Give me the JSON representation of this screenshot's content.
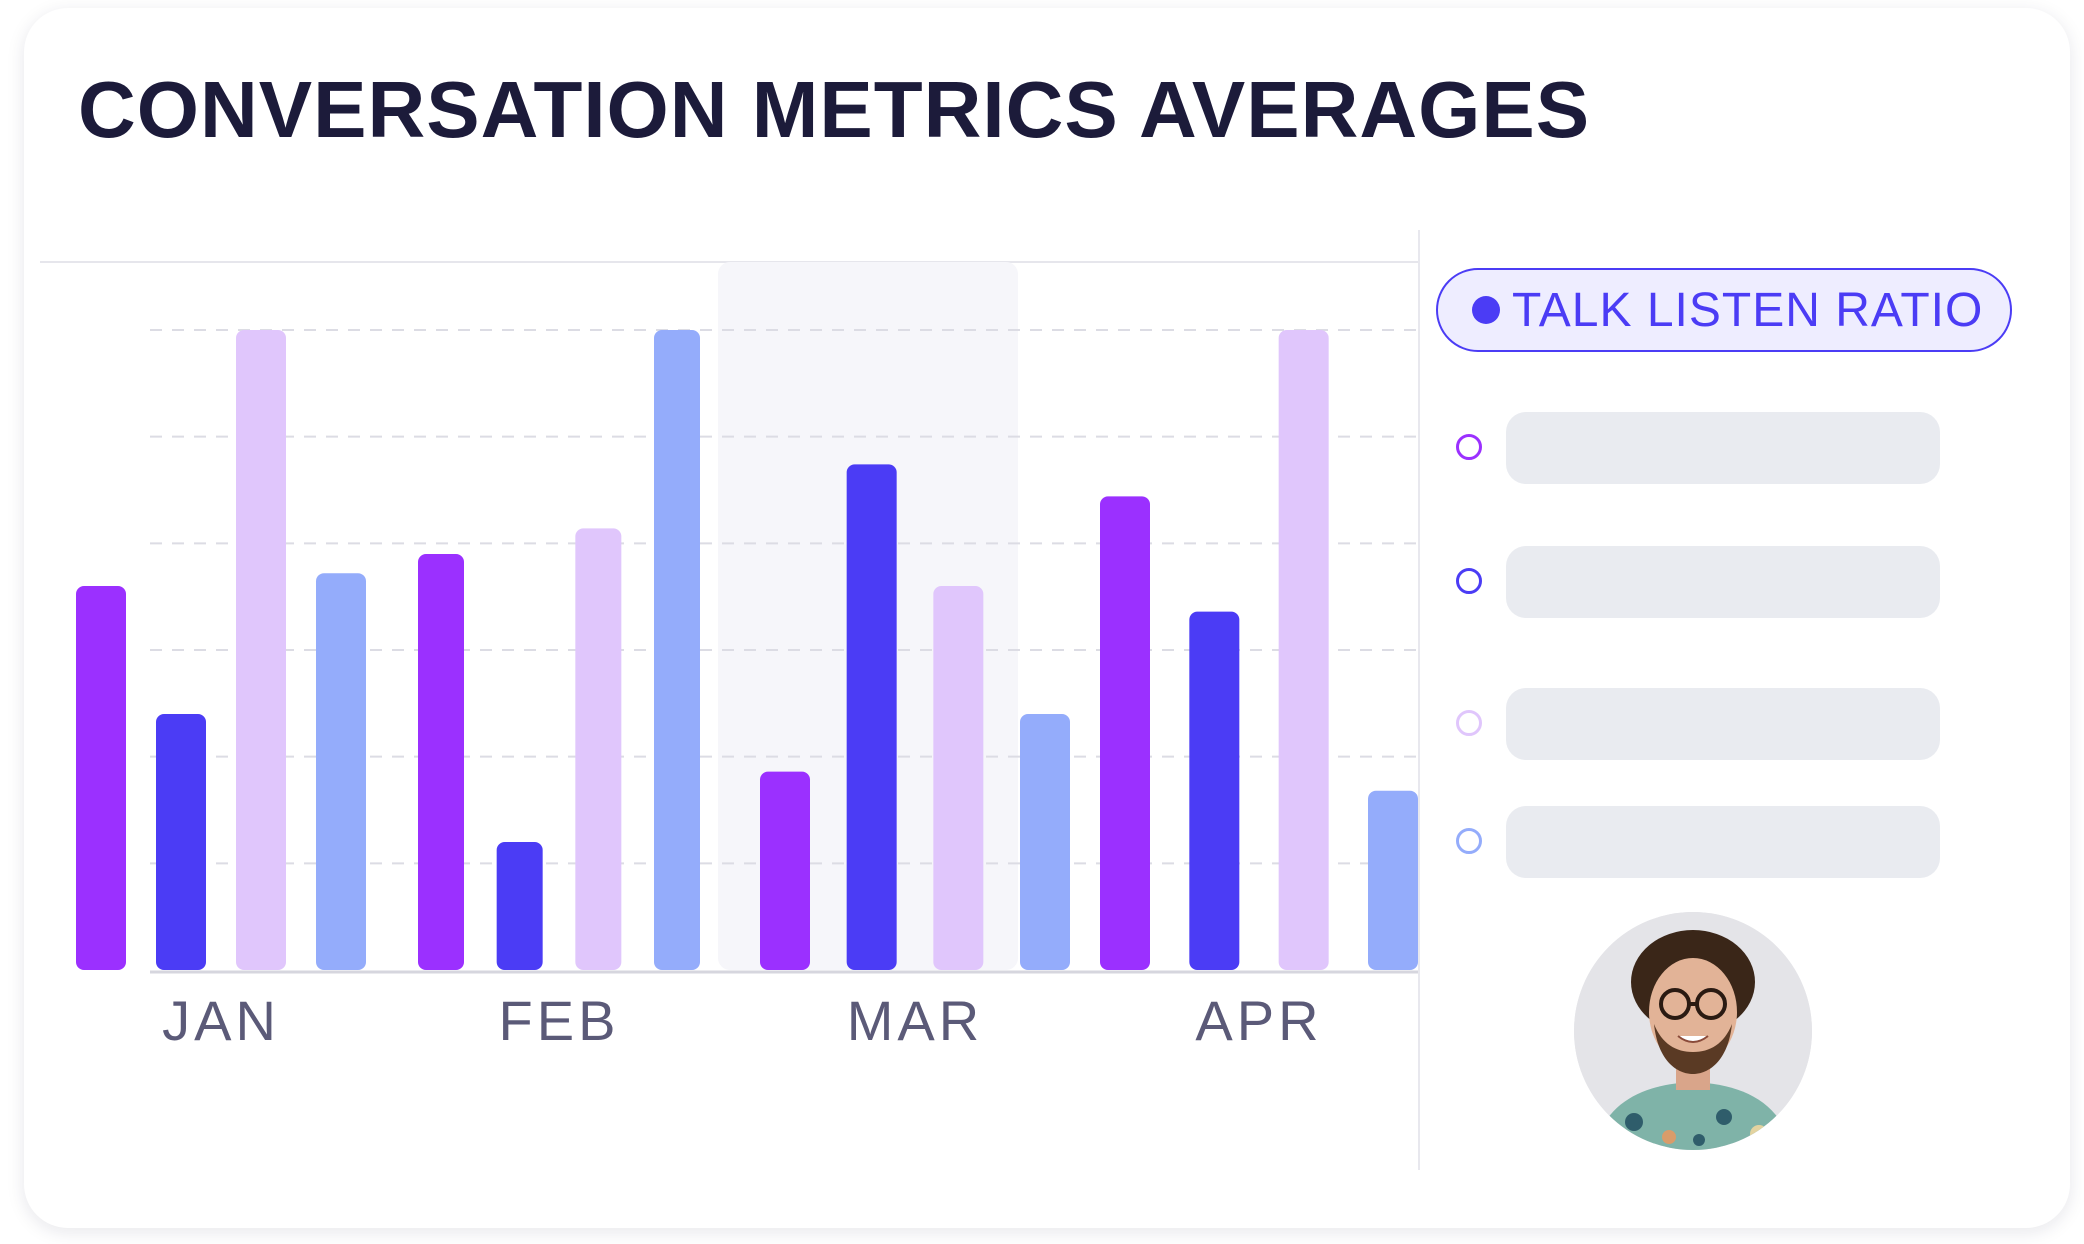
{
  "header": {
    "title": "CONVERSATION METRICS AVERAGES"
  },
  "legend": {
    "active_label": "TALK LISTEN RATIO",
    "active_color": "#4b3cf5",
    "items": [
      {
        "color": "#9b30ff"
      },
      {
        "color": "#4b3cf5"
      },
      {
        "color": "#e0c6fc"
      },
      {
        "color": "#94acfb"
      }
    ]
  },
  "avatar": {
    "icon": "person-photo-avatar"
  },
  "chart_data": {
    "type": "bar",
    "categories": [
      "JAN",
      "FEB",
      "MAR",
      "APR"
    ],
    "highlighted_category": "MAR",
    "ylim": [
      0,
      100
    ],
    "grid": true,
    "series": [
      {
        "color": "#9b30ff",
        "values": [
          60,
          65,
          31,
          74
        ]
      },
      {
        "color": "#4b3cf5",
        "values": [
          40,
          20,
          79,
          56
        ]
      },
      {
        "color": "#e0c6fc",
        "values": [
          100,
          69,
          60,
          100
        ]
      },
      {
        "color": "#94acfb",
        "values": [
          62,
          100,
          40,
          28
        ]
      }
    ]
  }
}
